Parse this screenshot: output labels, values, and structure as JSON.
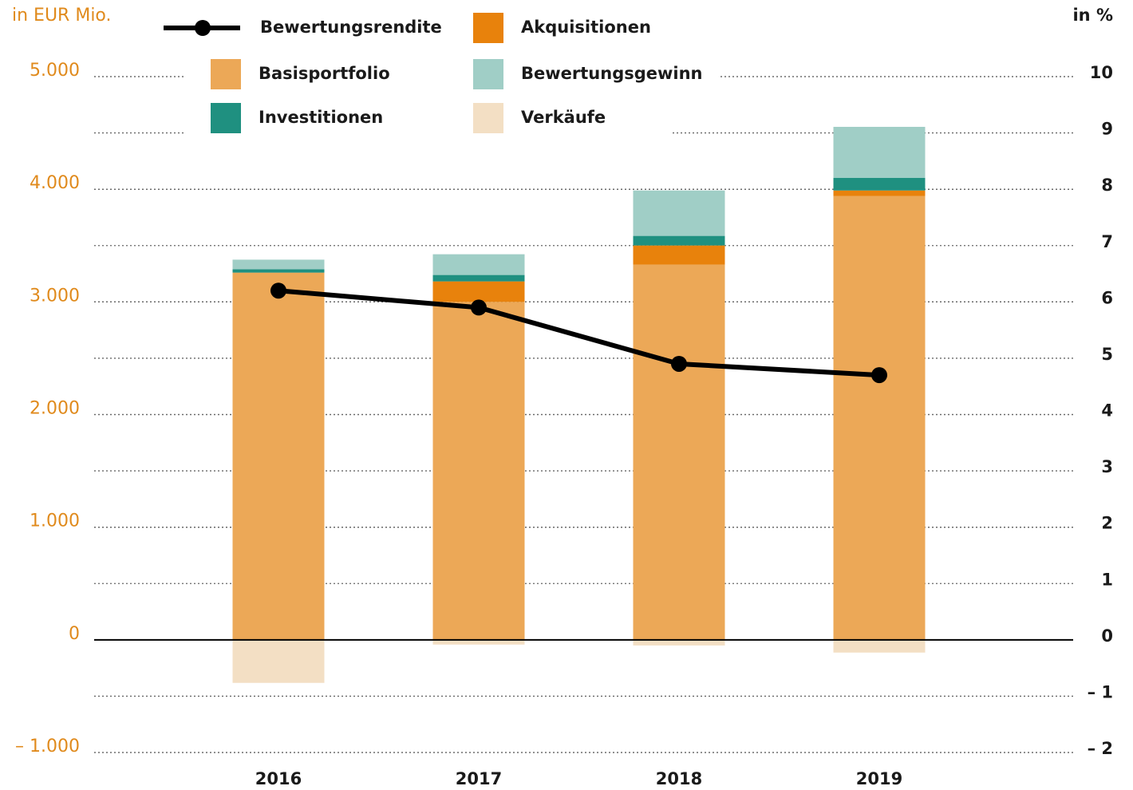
{
  "chart_data": {
    "type": "bar",
    "y_label": "in EUR Mio.",
    "y2_label": "in %",
    "categories": [
      "2016",
      "2017",
      "2018",
      "2019"
    ],
    "series": [
      {
        "name": "Basisportfolio",
        "color": "#eca857",
        "values": [
          3260,
          3000,
          3331,
          3939
        ]
      },
      {
        "name": "Akquisitionen",
        "color": "#e8820c",
        "values": [
          0,
          182,
          170,
          50
        ]
      },
      {
        "name": "Investitionen",
        "color": "#1f9080",
        "values": [
          30,
          57,
          85,
          113
        ]
      },
      {
        "name": "Bewertungsgewinn",
        "color": "#a0cec6",
        "values": [
          85,
          184,
          403,
          452
        ]
      },
      {
        "name": "Verkäufe",
        "color": "#f3dfc4",
        "values": [
          -382,
          -42,
          -50,
          -113
        ]
      },
      {
        "name": "Bewertungsrendite",
        "type": "line",
        "axis": "y2",
        "color": "#000000",
        "values": [
          6.2,
          5.9,
          4.9,
          4.7
        ]
      }
    ],
    "ylim": [
      -1000,
      5000
    ],
    "yticks": [
      {
        "value": -1000,
        "label": "– 1.000"
      },
      0,
      {
        "value": 1000,
        "label": "1.000"
      },
      {
        "value": 2000,
        "label": "2.000"
      },
      {
        "value": 3000,
        "label": "3.000"
      },
      {
        "value": 4000,
        "label": "4.000"
      },
      {
        "value": 5000,
        "label": "5.000"
      }
    ],
    "y2lim": [
      -2,
      10
    ],
    "y2ticks": [
      {
        "value": -2,
        "label": "– 2"
      },
      {
        "value": -1,
        "label": "– 1"
      },
      0,
      1,
      2,
      3,
      4,
      5,
      6,
      7,
      8,
      9,
      10
    ],
    "grid": true
  }
}
